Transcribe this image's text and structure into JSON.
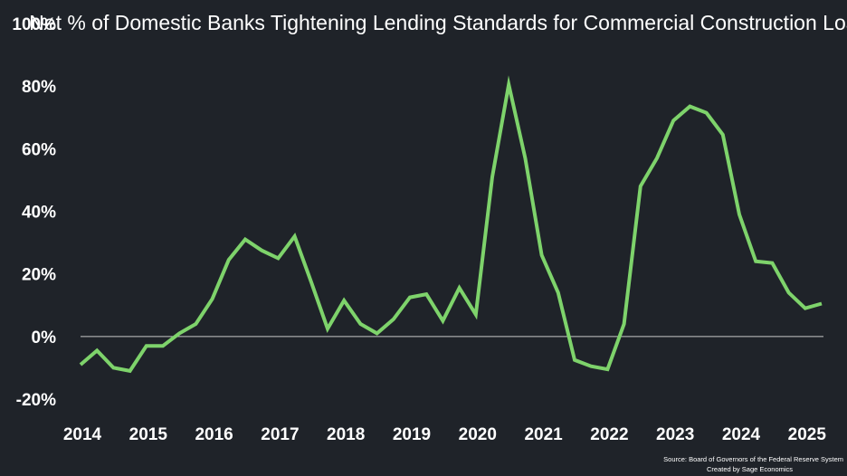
{
  "chart_data": {
    "type": "line",
    "title": "Net % of Domestic Banks Tightening Lending Standards for Commercial Construction Loans",
    "xlabel": "",
    "ylabel": "",
    "ylim": [
      -20,
      100
    ],
    "y_ticks": [
      "100%",
      "80%",
      "60%",
      "40%",
      "20%",
      "0%",
      "-20%"
    ],
    "y_tick_values": [
      100,
      80,
      60,
      40,
      20,
      0,
      -20
    ],
    "x_ticks": [
      "2014",
      "2015",
      "2016",
      "2017",
      "2018",
      "2019",
      "2020",
      "2021",
      "2022",
      "2023",
      "2024",
      "2025"
    ],
    "x_tick_values": [
      2014,
      2015,
      2016,
      2017,
      2018,
      2019,
      2020,
      2021,
      2022,
      2023,
      2024,
      2025
    ],
    "xlim": [
      2014,
      2025.5
    ],
    "grid": false,
    "zero_line": true,
    "series": [
      {
        "color": "#7ed36b",
        "x": [
          2014.0,
          2014.25,
          2014.5,
          2014.75,
          2015.0,
          2015.25,
          2015.5,
          2015.75,
          2016.0,
          2016.25,
          2016.5,
          2016.75,
          2017.0,
          2017.25,
          2017.5,
          2017.75,
          2018.0,
          2018.25,
          2018.5,
          2018.75,
          2019.0,
          2019.25,
          2019.5,
          2019.75,
          2020.0,
          2020.25,
          2020.5,
          2020.75,
          2021.0,
          2021.25,
          2021.5,
          2021.75,
          2022.0,
          2022.25,
          2022.5,
          2022.75,
          2023.0,
          2023.25,
          2023.5,
          2023.75,
          2024.0,
          2024.25,
          2024.5,
          2024.75,
          2025.0,
          2025.25
        ],
        "y": [
          -9,
          -4.5,
          -10,
          -11,
          -3,
          -3,
          1,
          4,
          12,
          24.5,
          31,
          27.5,
          25,
          32,
          17.5,
          2.5,
          11.5,
          4,
          1,
          5.5,
          12.5,
          13.5,
          5,
          15.5,
          7,
          51,
          80.5,
          57,
          26,
          14,
          -7.5,
          -9.5,
          -10.5,
          4,
          48,
          57,
          69,
          73.5,
          71.5,
          64.5,
          39,
          24,
          23.5,
          14,
          9,
          10.5
        ]
      }
    ]
  },
  "source": {
    "line1": "Source: Board of Governors of the Federal Reserve System",
    "line2": "Created by Sage Economics"
  },
  "colors": {
    "background": "#1f2329",
    "line": "#7ed36b",
    "axis": "#c8c8c8",
    "text": "#ffffff"
  }
}
